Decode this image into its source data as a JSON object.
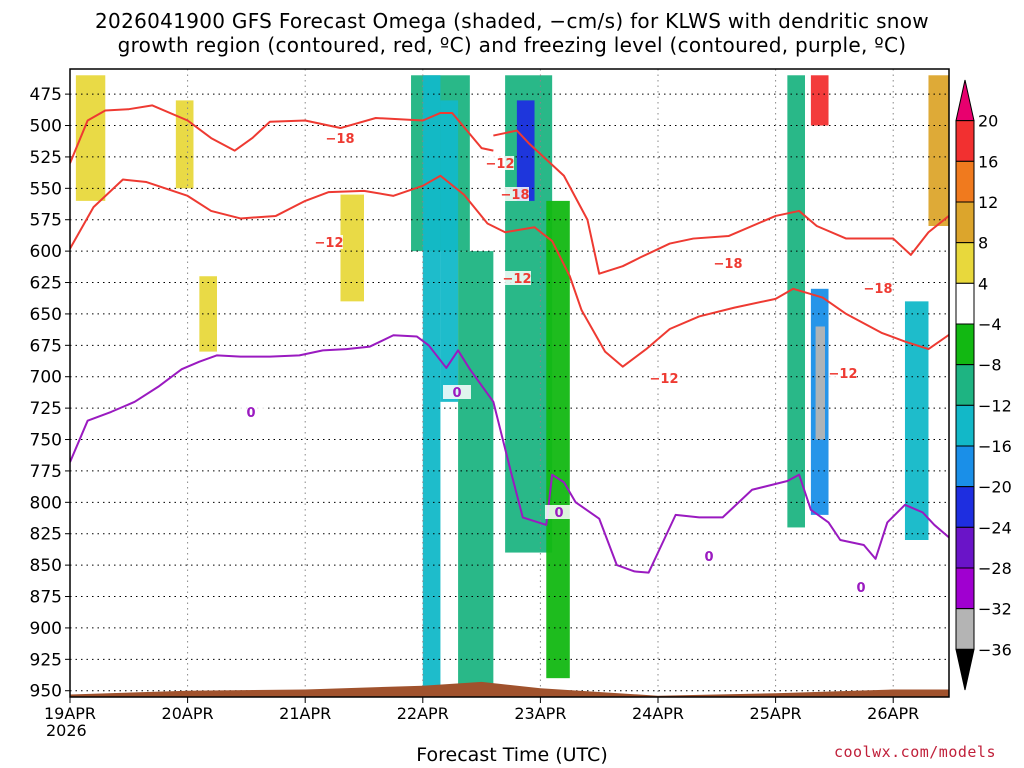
{
  "title_line1": "2026041900 GFS Forecast Omega (shaded, −cm/s) for KLWS with dendritic snow",
  "title_line2": "growth region (contoured, red, ºC) and freezing level (contoured, purple, ºC)",
  "xlabel": "Forecast Time (UTC)",
  "credit": "coolwx.com/models",
  "year_label": "2026",
  "chart_data": {
    "type": "heatmap",
    "x_ticks": [
      "19APR",
      "20APR",
      "21APR",
      "22APR",
      "23APR",
      "24APR",
      "25APR",
      "26APR"
    ],
    "x_range_days": [
      0,
      7.5
    ],
    "y_ticks": [
      475,
      500,
      525,
      550,
      575,
      600,
      625,
      650,
      675,
      700,
      725,
      750,
      775,
      800,
      825,
      850,
      875,
      900,
      925,
      950
    ],
    "y_range_hpa": [
      455,
      955
    ],
    "grid": true,
    "colorbar": {
      "labels": [
        "20",
        "16",
        "12",
        "8",
        "4",
        "−4",
        "−8",
        "−12",
        "−16",
        "−20",
        "−24",
        "−28",
        "−32",
        "−36"
      ],
      "colors": [
        "#e8006e",
        "#f23030",
        "#f07a1e",
        "#dca52c",
        "#e8d83c",
        "#ffffff",
        "#12b812",
        "#1eb482",
        "#12b8c8",
        "#1a8fe8",
        "#1e2ee0",
        "#6a14c8",
        "#a000d0",
        "#b4b4b4",
        "#000000"
      ]
    },
    "contour_labels": [
      "−18",
      "−18",
      "−18",
      "−18",
      "−12",
      "−12",
      "−12",
      "−12",
      "−12",
      "0",
      "0",
      "0",
      "0",
      "0"
    ],
    "series": [
      {
        "name": "-18",
        "color": "#ee3a32",
        "points": [
          [
            0,
            530
          ],
          [
            0.15,
            496
          ],
          [
            0.3,
            488
          ],
          [
            0.5,
            487
          ],
          [
            0.7,
            484
          ],
          [
            1.0,
            496
          ],
          [
            1.2,
            510
          ],
          [
            1.4,
            520
          ],
          [
            1.55,
            510
          ],
          [
            1.7,
            497
          ],
          [
            2.0,
            496
          ],
          [
            2.3,
            502
          ],
          [
            2.6,
            494
          ],
          [
            3.0,
            496
          ],
          [
            3.15,
            490
          ],
          [
            3.25,
            490
          ],
          [
            3.5,
            518
          ],
          [
            3.6,
            520
          ]
        ]
      },
      {
        "name": "-18",
        "color": "#ee3a32",
        "points": [
          [
            3.6,
            508
          ],
          [
            3.8,
            504
          ],
          [
            3.9,
            514
          ],
          [
            4.2,
            540
          ],
          [
            4.4,
            575
          ],
          [
            4.5,
            618
          ],
          [
            4.7,
            612
          ],
          [
            4.85,
            605
          ],
          [
            5.1,
            594
          ],
          [
            5.3,
            590
          ],
          [
            5.6,
            588
          ],
          [
            6.0,
            572
          ],
          [
            6.2,
            568
          ],
          [
            6.35,
            580
          ],
          [
            6.6,
            590
          ],
          [
            7.0,
            590
          ],
          [
            7.15,
            603
          ],
          [
            7.3,
            585
          ],
          [
            7.5,
            570
          ]
        ]
      },
      {
        "name": "-12",
        "color": "#ee3a32",
        "points": [
          [
            0,
            598
          ],
          [
            0.2,
            565
          ],
          [
            0.45,
            543
          ],
          [
            0.65,
            545
          ],
          [
            1.0,
            556
          ],
          [
            1.2,
            568
          ],
          [
            1.45,
            574
          ],
          [
            1.75,
            572
          ],
          [
            2.0,
            560
          ],
          [
            2.2,
            553
          ],
          [
            2.5,
            552
          ],
          [
            2.75,
            556
          ],
          [
            3.0,
            548
          ],
          [
            3.15,
            540
          ],
          [
            3.35,
            555
          ],
          [
            3.55,
            578
          ],
          [
            3.7,
            585
          ],
          [
            3.95,
            581
          ],
          [
            4.1,
            592
          ],
          [
            4.25,
            620
          ],
          [
            4.35,
            647
          ],
          [
            4.55,
            680
          ],
          [
            4.7,
            692
          ],
          [
            4.9,
            678
          ],
          [
            5.1,
            662
          ],
          [
            5.35,
            652
          ],
          [
            5.65,
            645
          ],
          [
            6.0,
            638
          ],
          [
            6.15,
            630
          ],
          [
            6.4,
            637
          ],
          [
            6.6,
            650
          ],
          [
            6.9,
            665
          ],
          [
            7.1,
            672
          ],
          [
            7.3,
            678
          ],
          [
            7.5,
            665
          ]
        ]
      },
      {
        "name": "0",
        "color": "#9a1ac0",
        "points": [
          [
            0,
            768
          ],
          [
            0.15,
            735
          ],
          [
            0.35,
            728
          ],
          [
            0.55,
            720
          ],
          [
            0.75,
            708
          ],
          [
            0.95,
            694
          ],
          [
            1.1,
            688
          ],
          [
            1.25,
            683
          ],
          [
            1.45,
            684
          ],
          [
            1.7,
            684
          ],
          [
            1.95,
            683
          ],
          [
            2.15,
            679
          ],
          [
            2.35,
            678
          ],
          [
            2.55,
            676
          ],
          [
            2.75,
            667
          ],
          [
            2.95,
            668
          ],
          [
            3.05,
            675
          ],
          [
            3.2,
            693
          ],
          [
            3.3,
            679
          ],
          [
            3.4,
            694
          ],
          [
            3.6,
            720
          ],
          [
            3.75,
            776
          ],
          [
            3.85,
            812
          ],
          [
            3.95,
            815
          ],
          [
            4.05,
            818
          ],
          [
            4.1,
            778
          ],
          [
            4.2,
            784
          ],
          [
            4.3,
            800
          ],
          [
            4.5,
            813
          ],
          [
            4.65,
            850
          ],
          [
            4.8,
            855
          ],
          [
            4.92,
            856
          ],
          [
            5.05,
            830
          ],
          [
            5.15,
            810
          ],
          [
            5.35,
            812
          ],
          [
            5.55,
            812
          ],
          [
            5.8,
            790
          ],
          [
            6.1,
            783
          ],
          [
            6.2,
            778
          ],
          [
            6.3,
            806
          ],
          [
            6.45,
            816
          ],
          [
            6.55,
            830
          ],
          [
            6.75,
            834
          ],
          [
            6.85,
            845
          ],
          [
            6.95,
            816
          ],
          [
            7.1,
            802
          ],
          [
            7.25,
            808
          ],
          [
            7.35,
            818
          ],
          [
            7.5,
            830
          ]
        ]
      }
    ],
    "surface": {
      "color": "#a0522d",
      "points_hpa": [
        [
          0,
          953
        ],
        [
          1.0,
          950
        ],
        [
          2.0,
          949
        ],
        [
          3.0,
          946
        ],
        [
          3.5,
          943
        ],
        [
          4.0,
          948
        ],
        [
          5.0,
          954
        ],
        [
          6.0,
          952
        ],
        [
          7.0,
          949
        ],
        [
          7.5,
          949
        ]
      ]
    },
    "shading_bands": [
      {
        "x": [
          0.05,
          0.3
        ],
        "y": [
          460,
          560
        ],
        "level": 4
      },
      {
        "x": [
          0.9,
          1.05
        ],
        "y": [
          480,
          550
        ],
        "level": 4
      },
      {
        "x": [
          1.08,
          1.3
        ],
        "y": [
          475,
          605
        ],
        "level": 5
      },
      {
        "x": [
          1.1,
          1.25
        ],
        "y": [
          620,
          680
        ],
        "level": 4
      },
      {
        "x": [
          2.3,
          2.5
        ],
        "y": [
          555,
          640
        ],
        "level": 4
      },
      {
        "x": [
          2.25,
          2.45
        ],
        "y": [
          700,
          800
        ],
        "level": 5
      },
      {
        "x": [
          2.9,
          3.4
        ],
        "y": [
          460,
          600
        ],
        "level": 7
      },
      {
        "x": [
          3.0,
          3.15
        ],
        "y": [
          460,
          950
        ],
        "level": 8
      },
      {
        "x": [
          3.15,
          3.3
        ],
        "y": [
          480,
          720
        ],
        "level": 8
      },
      {
        "x": [
          3.3,
          3.6
        ],
        "y": [
          600,
          950
        ],
        "level": 7
      },
      {
        "x": [
          3.7,
          4.1
        ],
        "y": [
          460,
          840
        ],
        "level": 7
      },
      {
        "x": [
          3.8,
          3.95
        ],
        "y": [
          480,
          560
        ],
        "level": 10
      },
      {
        "x": [
          4.05,
          4.25
        ],
        "y": [
          560,
          940
        ],
        "level": 6
      },
      {
        "x": [
          5.9,
          6.05
        ],
        "y": [
          640,
          740
        ],
        "level": 5
      },
      {
        "x": [
          6.1,
          6.25
        ],
        "y": [
          460,
          820
        ],
        "level": 7
      },
      {
        "x": [
          6.3,
          6.45
        ],
        "y": [
          460,
          500
        ],
        "level": 1
      },
      {
        "x": [
          6.3,
          6.45
        ],
        "y": [
          630,
          810
        ],
        "level": 9
      },
      {
        "x": [
          6.34,
          6.42
        ],
        "y": [
          660,
          750
        ],
        "level": 13
      },
      {
        "x": [
          7.1,
          7.3
        ],
        "y": [
          640,
          830
        ],
        "level": 8
      },
      {
        "x": [
          7.3,
          7.5
        ],
        "y": [
          460,
          580
        ],
        "level": 3
      }
    ]
  }
}
